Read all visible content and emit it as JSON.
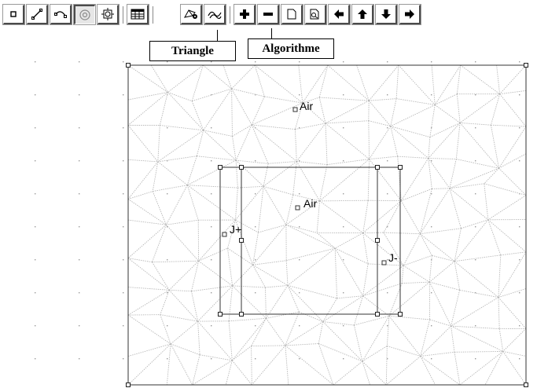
{
  "toolbar": {
    "buttons": [
      {
        "name": "select-node-button",
        "icon": "small-square-icon"
      },
      {
        "name": "draw-segment-button",
        "icon": "line-icon"
      },
      {
        "name": "draw-arc-button",
        "icon": "arc-icon"
      },
      {
        "name": "block-label-button",
        "icon": "circle-target-icon",
        "pressed": true
      },
      {
        "name": "group-button",
        "icon": "gear-square-icon"
      },
      {
        "name": "table-button",
        "icon": "table-icon"
      },
      {
        "name": "mesh-triangle-button",
        "icon": "blank-icon"
      },
      {
        "name": "algorithm-button",
        "icon": "mesh-gear-icon"
      },
      {
        "name": "solve-button",
        "icon": "wavy-icon"
      },
      {
        "name": "zoom-in-button",
        "icon": "plus-icon"
      },
      {
        "name": "zoom-out-button",
        "icon": "minus-icon"
      },
      {
        "name": "zoom-window-button",
        "icon": "page-icon"
      },
      {
        "name": "zoom-region-button",
        "icon": "zoom-page-icon"
      },
      {
        "name": "pan-left-button",
        "icon": "arrow-left-icon"
      },
      {
        "name": "pan-up-button",
        "icon": "arrow-up-icon"
      },
      {
        "name": "pan-down-button",
        "icon": "arrow-down-icon"
      },
      {
        "name": "pan-right-button",
        "icon": "arrow-right-icon"
      }
    ]
  },
  "callouts": {
    "triangle": "Triangle",
    "algorithme": "Algorithme"
  },
  "labels": {
    "air_outer": "Air",
    "air_inner": "Air",
    "j_plus": "J+",
    "j_minus": "J-"
  },
  "colors": {
    "mesh": "#b9b9b9",
    "geometry": "#333333",
    "grid_dot": "#9a9a9a"
  }
}
